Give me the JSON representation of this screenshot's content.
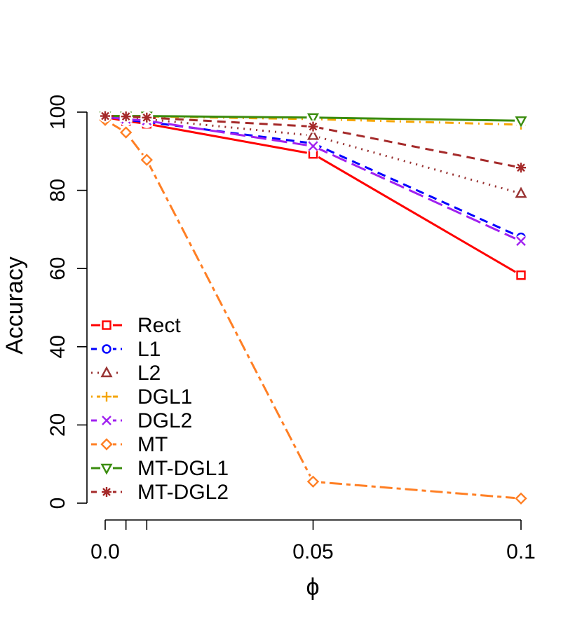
{
  "chart_data": {
    "type": "line",
    "title": "",
    "xlabel": "ϕ",
    "ylabel": "Accuracy",
    "x": [
      0.0,
      0.005,
      0.01,
      0.05,
      0.1
    ],
    "xticks": [
      0.0,
      0.005,
      0.01,
      0.05,
      0.1
    ],
    "xtick_labels": [
      "0.0",
      "",
      "",
      "0.05",
      "0.1"
    ],
    "yticks": [
      0,
      20,
      40,
      60,
      80,
      100
    ],
    "ytick_labels": [
      "0",
      "20",
      "40",
      "60",
      "80",
      "100"
    ],
    "xlim": [
      0.0,
      0.1
    ],
    "ylim": [
      0,
      100
    ],
    "grid": false,
    "legend_position": "bottom-left",
    "series": [
      {
        "name": "Rect",
        "color": "#ff0000",
        "dash": "solid",
        "marker": "square",
        "values": [
          98.7,
          97.7,
          97.0,
          89.3,
          58.3
        ]
      },
      {
        "name": "L1",
        "color": "#0000ff",
        "dash": "dashed",
        "marker": "circle",
        "values": [
          98.8,
          98.0,
          97.5,
          92.0,
          68.0
        ]
      },
      {
        "name": "L2",
        "color": "#993333",
        "dash": "dotted",
        "marker": "triangle-up",
        "values": [
          98.9,
          98.5,
          98.2,
          94.0,
          79.2
        ]
      },
      {
        "name": "DGL1",
        "color": "#f5a500",
        "dash": "dotdash",
        "marker": "plus",
        "values": [
          99.0,
          99.0,
          98.9,
          98.2,
          96.8
        ]
      },
      {
        "name": "DGL2",
        "color": "#a020f0",
        "dash": "longdash",
        "marker": "cross",
        "values": [
          98.8,
          98.2,
          97.8,
          91.3,
          67.0
        ]
      },
      {
        "name": "MT",
        "color": "#ff7f24",
        "dash": "twodash",
        "marker": "diamond",
        "values": [
          98.0,
          94.8,
          87.8,
          5.5,
          1.2
        ]
      },
      {
        "name": "MT-DGL1",
        "color": "#3a8c0e",
        "dash": "solid",
        "marker": "triangle-down",
        "values": [
          99.0,
          99.0,
          99.0,
          98.6,
          97.8
        ]
      },
      {
        "name": "MT-DGL2",
        "color": "#a52a2a",
        "dash": "dashed",
        "marker": "asterisk",
        "values": [
          99.0,
          98.9,
          98.6,
          96.3,
          85.8
        ]
      }
    ]
  }
}
